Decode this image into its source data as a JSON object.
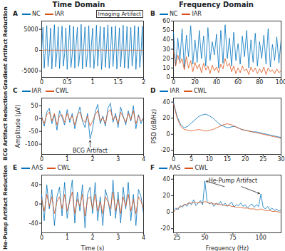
{
  "columns": [
    "Time Domain",
    "Frequency Domain"
  ],
  "rows": [
    "Gradient Artifact Reduction",
    "BCG Artifact Reduction",
    "He-Pump Artifact Reduction"
  ],
  "chart_data": [
    {
      "type": "line",
      "title": "A",
      "legend": "top-left",
      "grid": false,
      "annotations": [
        "Imaging Artifact"
      ],
      "x": [
        0,
        0.025,
        0.05,
        0.075,
        0.1,
        0.125,
        0.15,
        0.175,
        0.2,
        0.225,
        0.25,
        0.275,
        0.3,
        0.325,
        0.35,
        0.375,
        0.4,
        0.425,
        0.45,
        0.475,
        0.5,
        0.525,
        0.55,
        0.575,
        0.6,
        0.625,
        0.65,
        0.675,
        0.7,
        0.725,
        0.75,
        0.775,
        0.8,
        0.825,
        0.85,
        0.875,
        0.9,
        0.925,
        0.95,
        0.975,
        1,
        1.025,
        1.05,
        1.075,
        1.1,
        1.125,
        1.15,
        1.175,
        1.2,
        1.225,
        1.25,
        1.275,
        1.3,
        1.325,
        1.35,
        1.375,
        1.4,
        1.425,
        1.45,
        1.475,
        1.5,
        1.525,
        1.55,
        1.575,
        1.6,
        1.625,
        1.65,
        1.675,
        1.7,
        1.725,
        1.75,
        1.775,
        1.8,
        1.825,
        1.85,
        1.875,
        1.9,
        1.925,
        1.95,
        1.975,
        2
      ],
      "series": [
        {
          "name": "NC",
          "color": "#0072BD",
          "values": [
            200,
            5500,
            -4300,
            900,
            5900,
            -3900,
            -700,
            5300,
            -4500,
            1100,
            6100,
            -4000,
            -500,
            5600,
            -4400,
            800,
            5800,
            -3800,
            -900,
            5400,
            -4600,
            600,
            6000,
            -4100,
            -1000,
            5700,
            -4300,
            1200,
            5500,
            -3900,
            -600,
            6200,
            -4500,
            700,
            5600,
            -4000,
            -800,
            5900,
            -4200,
            1000,
            5300,
            -4400,
            -700,
            6000,
            -3800,
            900,
            5700,
            -4600,
            -500,
            5500,
            -4100,
            1100,
            6100,
            -4300,
            -900,
            5600,
            -3900,
            600,
            5800,
            -4500,
            -1000,
            5400,
            -4000,
            800,
            6000,
            -4200,
            -600,
            5700,
            -4400,
            1000,
            5500,
            -3800,
            -800,
            5900,
            -4600,
            700,
            5600,
            -4100,
            -900,
            5800,
            -4300
          ]
        },
        {
          "name": "IAR",
          "color": "#D95319",
          "values": [
            20,
            -60,
            80,
            -40,
            110,
            -90,
            30,
            -120,
            70,
            50,
            -80,
            140,
            -30,
            60,
            -100,
            90,
            -50,
            120,
            -70,
            40,
            -110,
            80,
            -20,
            130,
            -60,
            100,
            -90,
            50,
            -40,
            110,
            -130,
            70,
            20,
            -80,
            90,
            -50,
            120,
            -100,
            60,
            -30,
            80,
            -120,
            40,
            100,
            -70,
            50,
            -110,
            130,
            -20,
            70,
            -90,
            60,
            -40,
            110,
            -80,
            30,
            -60,
            120,
            -100,
            90,
            -50,
            70,
            -130,
            40,
            80,
            -60,
            100,
            -20,
            -90,
            110,
            -40,
            60,
            -70,
            130,
            -110,
            50,
            -30,
            90,
            -80,
            20,
            40
          ]
        }
      ],
      "xlim": [
        0,
        2
      ],
      "xticks": [
        0,
        0.5,
        1,
        1.5,
        2
      ],
      "ylim": [
        -6500,
        7000
      ],
      "yticks": [
        -5000,
        0,
        5000
      ]
    },
    {
      "type": "line",
      "title": "B",
      "legend": "top-left",
      "grid": false,
      "x": [
        0,
        2,
        4,
        6,
        8,
        10,
        12,
        14,
        16,
        18,
        20,
        22,
        24,
        26,
        28,
        30,
        32,
        34,
        36,
        38,
        40,
        42,
        44,
        46,
        48,
        50,
        52,
        54,
        56,
        58,
        60,
        62,
        64,
        66,
        68,
        70,
        72,
        74,
        76,
        78,
        80,
        82,
        84,
        86,
        88,
        90,
        92,
        94,
        96,
        98,
        100
      ],
      "series": [
        {
          "name": "NC",
          "color": "#0072BD",
          "values": [
            48,
            12,
            42,
            18,
            52,
            10,
            45,
            22,
            55,
            14,
            40,
            16,
            50,
            20,
            44,
            12,
            53,
            18,
            38,
            24,
            46,
            10,
            50,
            15,
            56,
            20,
            42,
            12,
            48,
            18,
            36,
            14,
            44,
            22,
            50,
            10,
            40,
            16,
            47,
            12,
            38,
            20,
            45,
            14,
            52,
            11,
            35,
            18,
            43,
            15,
            40
          ]
        },
        {
          "name": "IAR",
          "color": "#D95319",
          "values": [
            28,
            12,
            24,
            15,
            20,
            8,
            22,
            10,
            18,
            6,
            16,
            9,
            14,
            5,
            15,
            8,
            12,
            4,
            13,
            7,
            11,
            5,
            14,
            9,
            20,
            12,
            15,
            6,
            12,
            4,
            10,
            5,
            12,
            7,
            9,
            3,
            11,
            6,
            10,
            4,
            9,
            5,
            11,
            3,
            10,
            6,
            8,
            4,
            9,
            5,
            7
          ]
        }
      ],
      "xlim": [
        0,
        100
      ],
      "xticks": [
        0,
        20,
        40,
        60,
        80,
        100
      ],
      "ylim": [
        0,
        60
      ],
      "yticks": [
        0,
        10,
        20,
        30,
        40,
        50,
        60
      ]
    },
    {
      "type": "line",
      "title": "C",
      "legend": "top-left",
      "grid": false,
      "y_label": "Amplitude (μV)",
      "annotations": [
        "BCG Artifact"
      ],
      "x": [
        0,
        0.1,
        0.2,
        0.3,
        0.4,
        0.5,
        0.6,
        0.7,
        0.8,
        0.9,
        1,
        1.1,
        1.2,
        1.3,
        1.4,
        1.5,
        1.6,
        1.7,
        1.8,
        1.9,
        2,
        2.1,
        2.2,
        2.3,
        2.4,
        2.5,
        2.6,
        2.7,
        2.8,
        2.9,
        3,
        3.1,
        3.2,
        3.3,
        3.4,
        3.5,
        3.6,
        3.7,
        3.8,
        3.9,
        4
      ],
      "series": [
        {
          "name": "IAR",
          "color": "#0072BD",
          "values": [
            10,
            -30,
            25,
            40,
            -20,
            15,
            -45,
            30,
            5,
            -25,
            35,
            -15,
            20,
            -40,
            10,
            45,
            -10,
            -35,
            20,
            -80,
            -40,
            25,
            55,
            -20,
            10,
            -30,
            40,
            60,
            -15,
            20,
            -35,
            45,
            10,
            -25,
            30,
            -10,
            50,
            -40,
            15,
            -20,
            5
          ]
        },
        {
          "name": "CWL",
          "color": "#D95319",
          "values": [
            5,
            -20,
            15,
            25,
            -10,
            20,
            -25,
            10,
            15,
            -15,
            20,
            -5,
            10,
            -25,
            15,
            25,
            -5,
            -15,
            10,
            -30,
            -10,
            15,
            30,
            -10,
            5,
            -20,
            25,
            35,
            -5,
            10,
            -20,
            25,
            5,
            -15,
            20,
            -5,
            30,
            -20,
            10,
            -10,
            0
          ]
        }
      ],
      "xlim": [
        0,
        4
      ],
      "xticks": [
        0,
        1,
        2,
        3,
        4
      ],
      "ylim": [
        -140,
        80
      ],
      "yticks": [
        -100,
        -50,
        0,
        50
      ]
    },
    {
      "type": "line",
      "title": "D",
      "legend": "top-left",
      "grid": false,
      "y_label": "PSD (dB/Hz)",
      "x": [
        0,
        1,
        2,
        3,
        4,
        5,
        6,
        7,
        8,
        9,
        10,
        11,
        12,
        13,
        14,
        15,
        16,
        17,
        18,
        19,
        20,
        21,
        22,
        23,
        24,
        25,
        26,
        27,
        28,
        29,
        30
      ],
      "series": [
        {
          "name": "IAR",
          "color": "#0072BD",
          "values": [
            40,
            22,
            12,
            8,
            10,
            14,
            18,
            22,
            24,
            25,
            23,
            20,
            16,
            12,
            10,
            8,
            9,
            10,
            8,
            6,
            5,
            4,
            3,
            3,
            2,
            1,
            0,
            -1,
            -2,
            -3,
            -4
          ]
        },
        {
          "name": "CWL",
          "color": "#D95319",
          "values": [
            38,
            20,
            10,
            6,
            5,
            4,
            5,
            6,
            5,
            4,
            5,
            6,
            8,
            10,
            12,
            13,
            12,
            10,
            8,
            6,
            5,
            4,
            3,
            2,
            1,
            0,
            -1,
            -2,
            -3,
            -4,
            -5
          ]
        }
      ],
      "xlim": [
        0,
        30
      ],
      "xticks": [
        0,
        5,
        10,
        15,
        20,
        25,
        30
      ],
      "ylim": [
        -25,
        45
      ],
      "yticks": [
        -20,
        0,
        20,
        40
      ]
    },
    {
      "type": "line",
      "title": "E",
      "legend": "top-left",
      "grid": false,
      "x_label": "Time (s)",
      "x": [
        0,
        0.1,
        0.2,
        0.3,
        0.4,
        0.5,
        0.6,
        0.7,
        0.8,
        0.9,
        1,
        1.1,
        1.2,
        1.3,
        1.4,
        1.5,
        1.6,
        1.7,
        1.8,
        1.9,
        2,
        2.1,
        2.2,
        2.3,
        2.4,
        2.5,
        2.6,
        2.7,
        2.8,
        2.9,
        3,
        3.1,
        3.2,
        3.3,
        3.4,
        3.5,
        3.6,
        3.7,
        3.8,
        3.9,
        4
      ],
      "series": [
        {
          "name": "AAS",
          "color": "#0072BD",
          "values": [
            20,
            -35,
            40,
            -10,
            30,
            -45,
            15,
            35,
            -25,
            45,
            -30,
            10,
            50,
            -40,
            25,
            -15,
            40,
            -50,
            20,
            35,
            -20,
            45,
            -35,
            15,
            -45,
            30,
            10,
            -25,
            50,
            -30,
            25,
            -40,
            35,
            -10,
            45,
            -35,
            20,
            -45,
            30,
            15,
            -20
          ]
        },
        {
          "name": "CWL",
          "color": "#D95319",
          "values": [
            10,
            -15,
            20,
            -5,
            15,
            -20,
            5,
            15,
            -10,
            20,
            -15,
            5,
            25,
            -20,
            10,
            -5,
            20,
            -25,
            10,
            15,
            -10,
            20,
            -15,
            5,
            -20,
            15,
            5,
            -10,
            25,
            -15,
            10,
            -20,
            15,
            -5,
            20,
            -15,
            10,
            -20,
            15,
            5,
            -10
          ]
        }
      ],
      "xlim": [
        0,
        4
      ],
      "xticks": [
        0,
        1,
        2,
        3,
        4
      ],
      "ylim": [
        -60,
        60
      ],
      "yticks": [
        -40,
        0,
        40
      ]
    },
    {
      "type": "line",
      "title": "F",
      "legend": "top-left",
      "grid": false,
      "x_label": "Frequency (Hz)",
      "annotations": [
        "He-Pump Artifact"
      ],
      "x": [
        22,
        24,
        26,
        28,
        30,
        32,
        34,
        36,
        38,
        40,
        42,
        44,
        46,
        48,
        50,
        52,
        54,
        56,
        58,
        60,
        62,
        64,
        66,
        68,
        70,
        72,
        74,
        76,
        78,
        80,
        82,
        84,
        86,
        88,
        90,
        92,
        94,
        96,
        98,
        100,
        102,
        104,
        106,
        108,
        110,
        112,
        114,
        116,
        118
      ],
      "series": [
        {
          "name": "AAS",
          "color": "#0072BD",
          "values": [
            2,
            5,
            3,
            8,
            6,
            10,
            7,
            12,
            9,
            15,
            8,
            11,
            14,
            9,
            38,
            13,
            10,
            12,
            7,
            11,
            9,
            13,
            8,
            11,
            7,
            10,
            12,
            6,
            9,
            8,
            11,
            7,
            9,
            5,
            8,
            10,
            6,
            9,
            7,
            22,
            6,
            4,
            7,
            3,
            5,
            2,
            4,
            1,
            3
          ]
        },
        {
          "name": "CWL",
          "color": "#D95319",
          "values": [
            0,
            3,
            5,
            6,
            8,
            9,
            10,
            11,
            11,
            12,
            12,
            11,
            12,
            11,
            13,
            12,
            11,
            11,
            10,
            10,
            10,
            9,
            9,
            8,
            8,
            8,
            7,
            7,
            6,
            6,
            6,
            5,
            5,
            5,
            4,
            4,
            4,
            3,
            3,
            4,
            3,
            2,
            2,
            2,
            1,
            1,
            1,
            0,
            0
          ]
        }
      ],
      "xlim": [
        22,
        118
      ],
      "xticks": [
        25,
        50,
        75,
        100
      ],
      "ylim": [
        -25,
        45
      ],
      "yticks": [
        -20,
        0,
        20,
        40
      ]
    }
  ]
}
